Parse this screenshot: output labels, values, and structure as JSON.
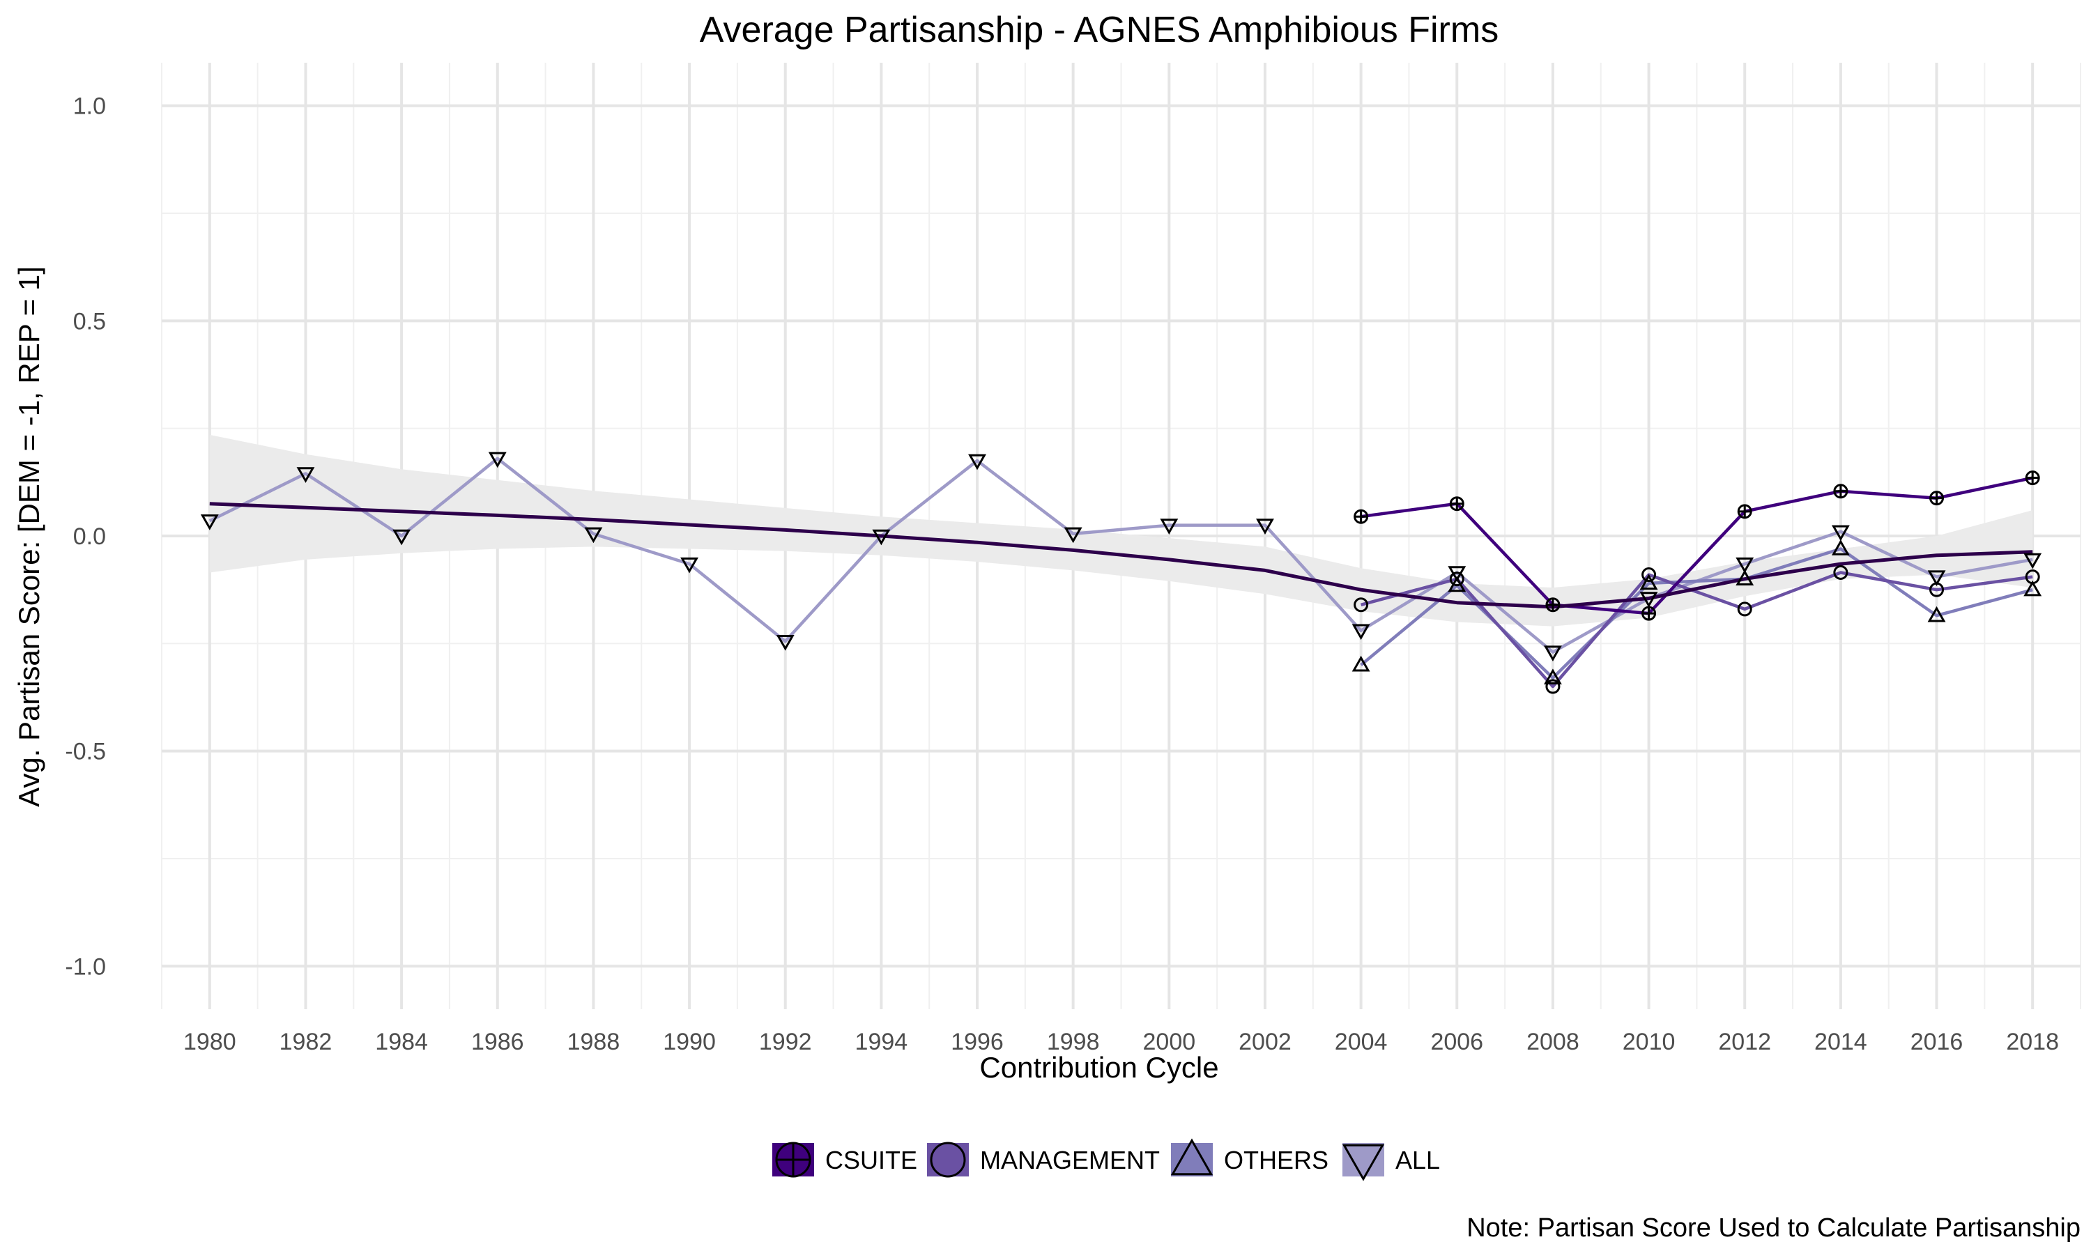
{
  "chart_data": {
    "type": "line",
    "title": "Average Partisanship - AGNES Amphibious Firms",
    "xlabel": "Contribution Cycle",
    "ylabel": "Avg. Partisan Score: [DEM = -1, REP = 1]",
    "note": "Note: Partisan Score Used to Calculate Partisanship",
    "xlim": [
      1979,
      2019
    ],
    "ylim": [
      -1.1,
      1.1
    ],
    "x_ticks": [
      1980,
      1982,
      1984,
      1986,
      1988,
      1990,
      1992,
      1994,
      1996,
      1998,
      2000,
      2002,
      2004,
      2006,
      2008,
      2010,
      2012,
      2014,
      2016,
      2018
    ],
    "x_tick_labels": [
      "1980",
      "1982",
      "1984",
      "1986",
      "1988",
      "1990",
      "1992",
      "1994",
      "1996",
      "1998",
      "2000",
      "2002",
      "2004",
      "2006",
      "2008",
      "2010",
      "2012",
      "2014",
      "2016",
      "2018"
    ],
    "y_ticks": [
      -1.0,
      -0.5,
      0.0,
      0.5,
      1.0
    ],
    "y_tick_labels": [
      "-1.0",
      "-0.5",
      "0.0",
      "0.5",
      "1.0"
    ],
    "grid": true,
    "legend_position": "bottom",
    "series": [
      {
        "name": "CSUITE",
        "color": "#3f007d",
        "marker": "circle-plus",
        "x": [
          2004,
          2006,
          2008,
          2010,
          2012,
          2014,
          2016,
          2018
        ],
        "y": [
          0.045,
          0.075,
          -0.16,
          -0.18,
          0.057,
          0.104,
          0.088,
          0.135
        ]
      },
      {
        "name": "MANAGEMENT",
        "color": "#6a51a3",
        "marker": "circle",
        "x": [
          2004,
          2006,
          2008,
          2010,
          2012,
          2014,
          2016,
          2018
        ],
        "y": [
          -0.16,
          -0.1,
          -0.35,
          -0.09,
          -0.17,
          -0.085,
          -0.125,
          -0.095
        ]
      },
      {
        "name": "OTHERS",
        "color": "#807dba",
        "marker": "triangle-up",
        "x": [
          2004,
          2006,
          2008,
          2010,
          2012,
          2014,
          2016,
          2018
        ],
        "y": [
          -0.3,
          -0.115,
          -0.33,
          -0.11,
          -0.1,
          -0.03,
          -0.185,
          -0.125
        ]
      },
      {
        "name": "ALL",
        "color": "#9e9ac8",
        "marker": "triangle-down",
        "x": [
          1980,
          1982,
          1984,
          1986,
          1988,
          1990,
          1992,
          1994,
          1996,
          1998,
          2000,
          2002,
          2004,
          2006,
          2008,
          2010,
          2012,
          2014,
          2016,
          2018
        ],
        "y": [
          0.035,
          0.145,
          0.0,
          0.18,
          0.005,
          -0.065,
          -0.245,
          0.0,
          0.175,
          0.005,
          0.025,
          0.025,
          -0.22,
          -0.085,
          -0.27,
          -0.145,
          -0.065,
          0.01,
          -0.095,
          -0.055
        ]
      }
    ],
    "smooth": {
      "color": "#2d004b",
      "band_color": "#ebebeb",
      "x": [
        1980,
        1982,
        1984,
        1986,
        1988,
        1990,
        1992,
        1994,
        1996,
        1998,
        2000,
        2002,
        2004,
        2006,
        2008,
        2010,
        2012,
        2014,
        2016,
        2018
      ],
      "y": [
        0.075,
        0.066,
        0.057,
        0.048,
        0.038,
        0.026,
        0.014,
        0.0,
        -0.015,
        -0.033,
        -0.055,
        -0.08,
        -0.125,
        -0.155,
        -0.165,
        -0.145,
        -0.1,
        -0.065,
        -0.045,
        -0.037
      ],
      "lower": [
        -0.085,
        -0.055,
        -0.04,
        -0.03,
        -0.025,
        -0.03,
        -0.035,
        -0.045,
        -0.06,
        -0.08,
        -0.105,
        -0.135,
        -0.175,
        -0.2,
        -0.21,
        -0.19,
        -0.14,
        -0.1,
        -0.09,
        -0.12
      ],
      "upper": [
        0.235,
        0.19,
        0.155,
        0.13,
        0.105,
        0.085,
        0.065,
        0.045,
        0.03,
        0.015,
        -0.005,
        -0.025,
        -0.075,
        -0.11,
        -0.12,
        -0.1,
        -0.06,
        -0.03,
        0.0,
        0.06
      ]
    }
  }
}
